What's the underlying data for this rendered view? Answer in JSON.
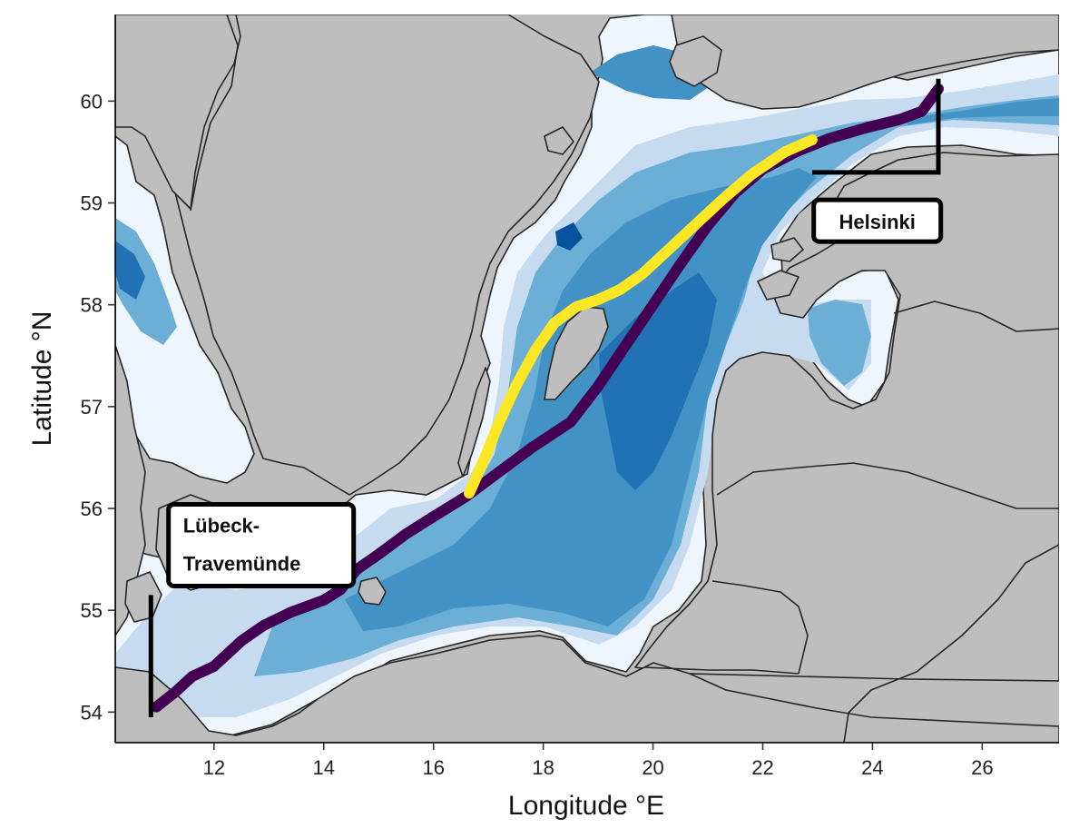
{
  "map": {
    "xlabel": "Longitude °E",
    "ylabel": "Latitude °N",
    "lon_range": [
      10.2,
      27.4
    ],
    "lat_range": [
      53.7,
      60.85
    ],
    "x_ticks": [
      {
        "value": 12,
        "label": "12"
      },
      {
        "value": 14,
        "label": "14"
      },
      {
        "value": 16,
        "label": "16"
      },
      {
        "value": 18,
        "label": "18"
      },
      {
        "value": 20,
        "label": "20"
      },
      {
        "value": 22,
        "label": "22"
      },
      {
        "value": 24,
        "label": "24"
      },
      {
        "value": 26,
        "label": "26"
      }
    ],
    "y_ticks": [
      {
        "value": 54,
        "label": "54"
      },
      {
        "value": 55,
        "label": "55"
      },
      {
        "value": 56,
        "label": "56"
      },
      {
        "value": 57,
        "label": "57"
      },
      {
        "value": 58,
        "label": "58"
      },
      {
        "value": 59,
        "label": "59"
      },
      {
        "value": 60,
        "label": "60"
      }
    ],
    "colors": {
      "land": "#bebebe",
      "coastline": "#262626",
      "sea_shallow": "#eef5fc",
      "sea_light": "#c6dbef",
      "sea_mid": "#6baed6",
      "sea_deep": "#4292c6",
      "sea_deeper": "#2171b5",
      "sea_deepest": "#08519c",
      "route_east": "#440154",
      "route_west": "#fde725",
      "label_border": "#000000",
      "label_fill": "#ffffff"
    },
    "routes": [
      {
        "id": "east-route",
        "color_key": "route_east",
        "points": [
          [
            10.95,
            54.05
          ],
          [
            11.3,
            54.2
          ],
          [
            11.6,
            54.35
          ],
          [
            12.0,
            54.45
          ],
          [
            12.2,
            54.55
          ],
          [
            12.5,
            54.7
          ],
          [
            12.9,
            54.85
          ],
          [
            13.4,
            54.98
          ],
          [
            14.0,
            55.1
          ],
          [
            14.3,
            55.2
          ],
          [
            14.6,
            55.4
          ],
          [
            15.0,
            55.55
          ],
          [
            15.5,
            55.75
          ],
          [
            16.0,
            55.92
          ],
          [
            16.6,
            56.12
          ],
          [
            17.2,
            56.36
          ],
          [
            17.8,
            56.6
          ],
          [
            18.5,
            56.85
          ],
          [
            19.0,
            57.2
          ],
          [
            19.5,
            57.6
          ],
          [
            20.0,
            58.0
          ],
          [
            20.5,
            58.4
          ],
          [
            21.0,
            58.78
          ],
          [
            21.5,
            59.1
          ],
          [
            22.0,
            59.33
          ],
          [
            22.6,
            59.5
          ],
          [
            23.2,
            59.63
          ],
          [
            23.9,
            59.74
          ],
          [
            24.5,
            59.82
          ],
          [
            24.9,
            59.9
          ],
          [
            25.2,
            60.12
          ]
        ]
      },
      {
        "id": "west-route",
        "color_key": "route_west",
        "points": [
          [
            16.65,
            56.15
          ],
          [
            16.9,
            56.45
          ],
          [
            17.2,
            56.85
          ],
          [
            17.5,
            57.2
          ],
          [
            17.85,
            57.55
          ],
          [
            18.2,
            57.82
          ],
          [
            18.6,
            57.98
          ],
          [
            19.0,
            58.05
          ],
          [
            19.4,
            58.15
          ],
          [
            19.8,
            58.3
          ],
          [
            20.3,
            58.55
          ],
          [
            20.8,
            58.8
          ],
          [
            21.3,
            59.05
          ],
          [
            21.8,
            59.28
          ],
          [
            22.4,
            59.5
          ],
          [
            22.9,
            59.62
          ]
        ]
      }
    ],
    "labels": [
      {
        "id": "helsinki",
        "lines": [
          "Helsinki"
        ],
        "leader": [
          [
            25.2,
            60.22
          ],
          [
            25.2,
            59.3
          ],
          [
            22.9,
            59.3
          ]
        ],
        "box_anchor": [
          22.93,
          59.03
        ]
      },
      {
        "id": "lubeck",
        "lines": [
          "Lübeck-",
          "Travemünde"
        ],
        "leader": [
          [
            10.85,
            53.95
          ],
          [
            10.85,
            55.15
          ]
        ],
        "box_anchor": [
          11.17,
          56.04
        ]
      }
    ]
  }
}
